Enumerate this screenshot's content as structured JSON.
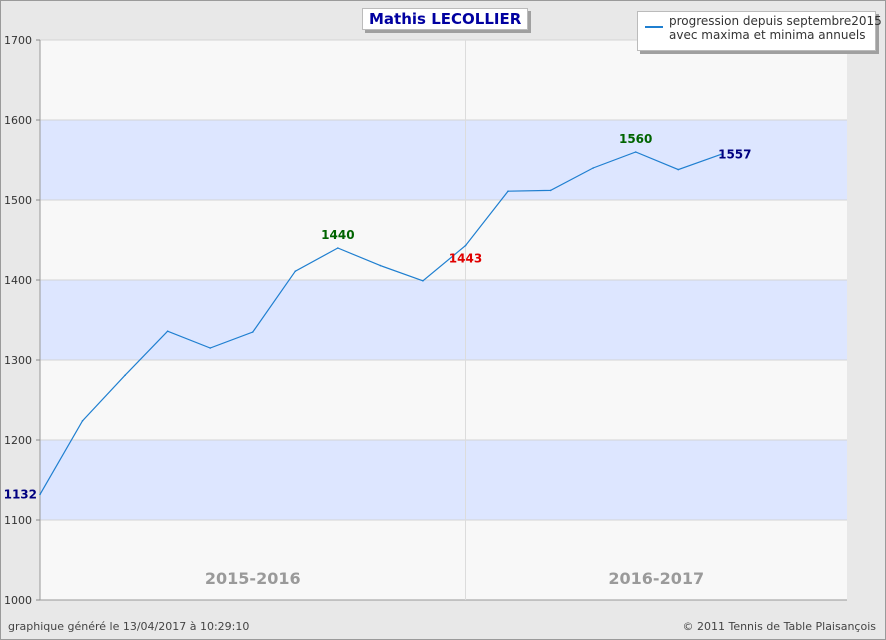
{
  "chart_data": {
    "type": "line",
    "title": "Mathis LECOLLIER",
    "legend": {
      "position": "top-right",
      "lines": [
        "progression depuis septembre2015",
        "avec maxima et minima annuels"
      ]
    },
    "ylim": [
      1000,
      1700
    ],
    "y_ticks": [
      1000,
      1100,
      1200,
      1300,
      1400,
      1500,
      1600,
      1700
    ],
    "series": [
      {
        "values": [
          1132,
          1224,
          1281,
          1336,
          1315,
          1335,
          1411,
          1440,
          1418,
          1399,
          1443,
          1511,
          1512,
          1540,
          1560,
          1538,
          1557
        ],
        "color": "#1f7fd0"
      }
    ],
    "seasons": [
      {
        "label": "2015-2016",
        "start_index": 0,
        "end_index": 10
      },
      {
        "label": "2016-2017",
        "start_index": 10,
        "end_index": 20
      }
    ],
    "point_labels": [
      {
        "index": 0,
        "text": "1132",
        "color": "#000080",
        "position": "left"
      },
      {
        "index": 7,
        "text": "1440",
        "color": "#006400",
        "position": "above"
      },
      {
        "index": 10,
        "text": "1443",
        "color": "#e00000",
        "position": "below"
      },
      {
        "index": 14,
        "text": "1560",
        "color": "#006400",
        "position": "above"
      },
      {
        "index": 16,
        "text": "1557",
        "color": "#000080",
        "position": "right"
      }
    ],
    "band_color": "#dde6ff",
    "plot_color": "#f8f8f8",
    "grid": true
  },
  "footer": {
    "generated": "graphique généré le 13/04/2017 à 10:29:10",
    "copyright": "© 2011 Tennis de Table Plaisançois"
  }
}
